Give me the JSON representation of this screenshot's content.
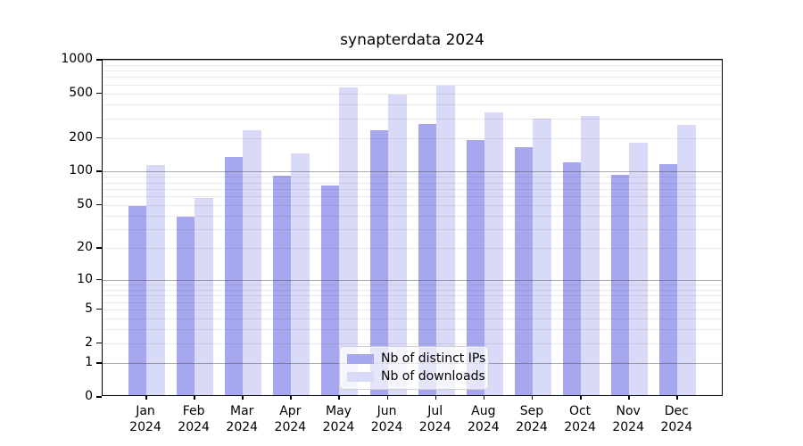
{
  "title": "synapterdata 2024",
  "colors": {
    "distinct_ips": "#a7a7f0",
    "downloads": "#d9d9f8",
    "grid_major": "#9c9c9c",
    "grid_minor": "#ececec",
    "axis": "#000000"
  },
  "legend": {
    "items": [
      {
        "label": "Nb of distinct IPs",
        "series": "distinct_ips"
      },
      {
        "label": "Nb of downloads",
        "series": "downloads"
      }
    ],
    "position": "lower center"
  },
  "chart_data": {
    "type": "bar",
    "title": "synapterdata 2024",
    "scale": "log10(value+1)",
    "categories": [
      "Jan",
      "Feb",
      "Mar",
      "Apr",
      "May",
      "Jun",
      "Jul",
      "Aug",
      "Sep",
      "Oct",
      "Nov",
      "Dec"
    ],
    "year_label": "2024",
    "series": [
      {
        "name": "Nb of distinct IPs",
        "color_key": "distinct_ips",
        "values": [
          47,
          38,
          130,
          89,
          73,
          225,
          260,
          185,
          160,
          116,
          91,
          112
        ]
      },
      {
        "name": "Nb of downloads",
        "color_key": "downloads",
        "values": [
          110,
          56,
          225,
          140,
          545,
          470,
          565,
          325,
          290,
          305,
          176,
          255
        ]
      }
    ],
    "ylim": [
      0,
      1000
    ],
    "yticks": [
      1000,
      500,
      200,
      100,
      50,
      20,
      10,
      5,
      2,
      1,
      0
    ],
    "grid": "both",
    "grid_major_at": [
      1,
      10,
      100,
      1000
    ],
    "legend_position": "lower center"
  }
}
